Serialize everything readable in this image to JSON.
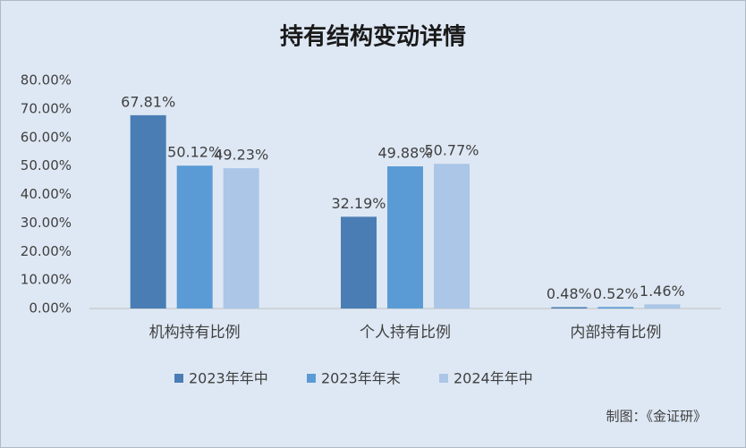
{
  "chart_data": {
    "type": "bar",
    "title": "持有结构变动详情",
    "categories": [
      "机构持有比例",
      "个人持有比例",
      "内部持有比例"
    ],
    "series": [
      {
        "name": "2023年年中",
        "color": "#4a7db4",
        "values": [
          67.81,
          32.19,
          0.48
        ],
        "value_labels": [
          "67.81%",
          "32.19%",
          "0.48%"
        ]
      },
      {
        "name": "2023年年末",
        "color": "#5b9bd5",
        "values": [
          50.12,
          49.88,
          0.52
        ],
        "value_labels": [
          "50.12%",
          "49.88%",
          "0.52%"
        ]
      },
      {
        "name": "2024年年中",
        "color": "#abc6e6",
        "values": [
          49.23,
          50.77,
          1.46
        ],
        "value_labels": [
          "49.23%",
          "50.77%",
          "1.46%"
        ]
      }
    ],
    "ylim": [
      0,
      80
    ],
    "yticks": [
      {
        "value": 0,
        "label": "0.00%"
      },
      {
        "value": 10,
        "label": "10.00%"
      },
      {
        "value": 20,
        "label": "20.00%"
      },
      {
        "value": 30,
        "label": "30.00%"
      },
      {
        "value": 40,
        "label": "40.00%"
      },
      {
        "value": 50,
        "label": "50.00%"
      },
      {
        "value": 60,
        "label": "60.00%"
      },
      {
        "value": 70,
        "label": "70.00%"
      },
      {
        "value": 80,
        "label": "80.00%"
      }
    ],
    "annotation": "制图：《金证研》"
  }
}
